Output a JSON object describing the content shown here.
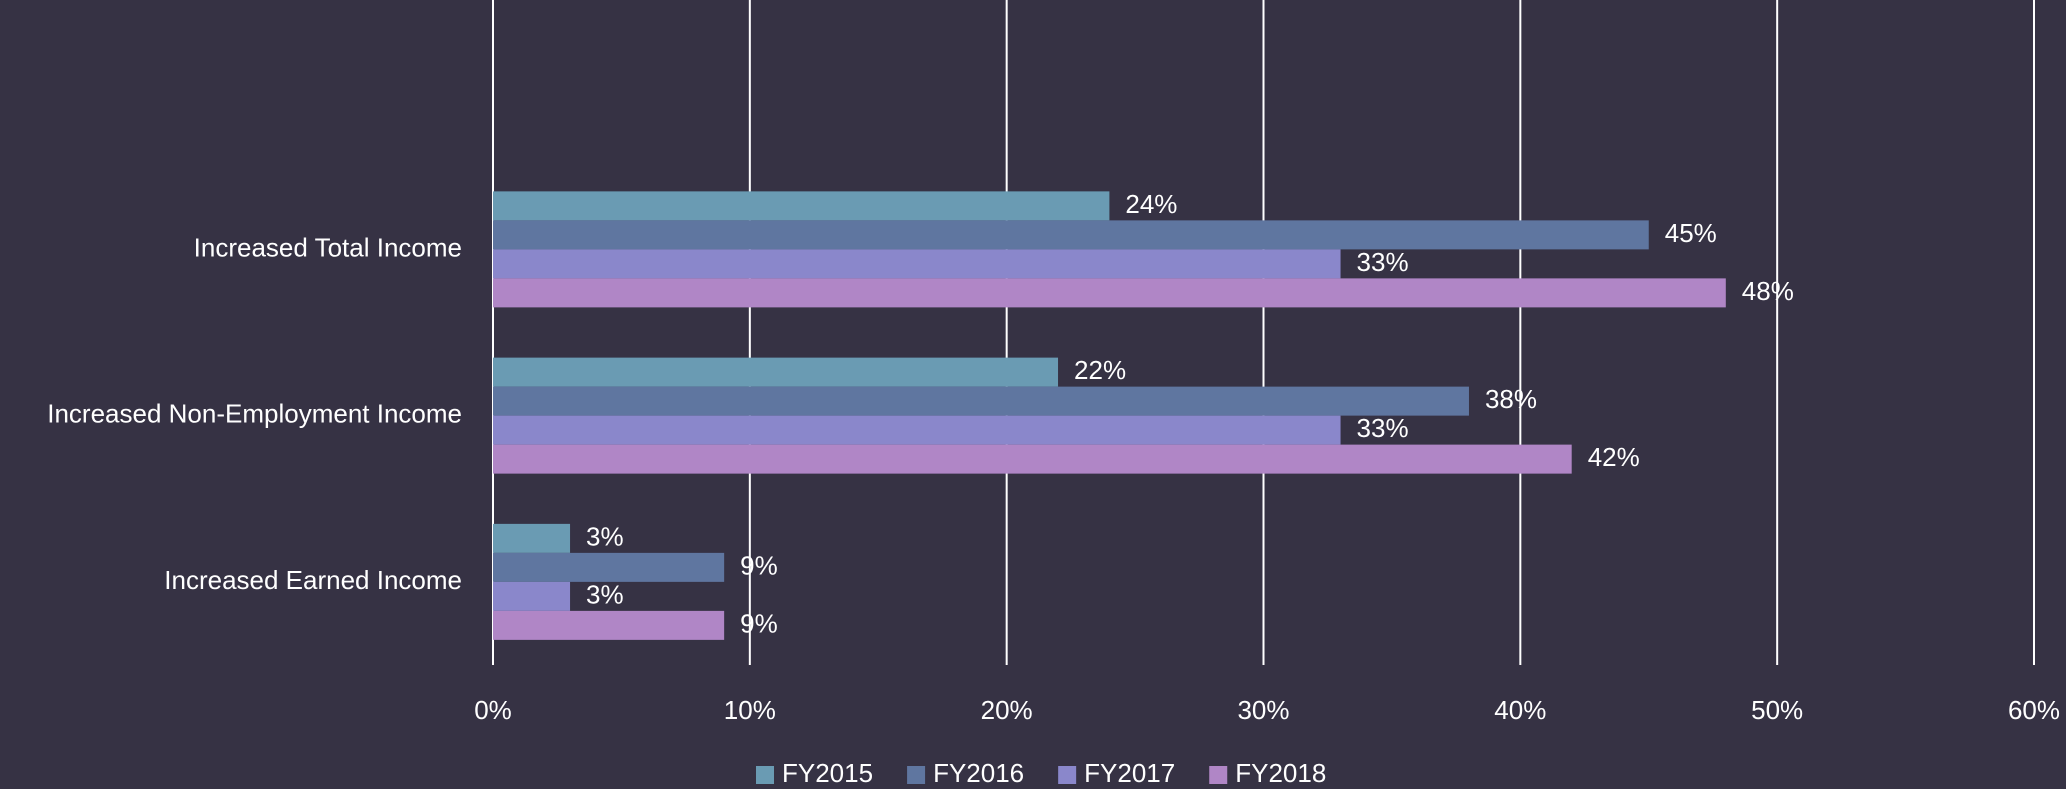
{
  "chart_data": {
    "type": "hbar",
    "categories": [
      null,
      "Increased Total Income",
      "Increased Non-Employment Income",
      "Increased Earned Income"
    ],
    "series": [
      {
        "name": "FY2015",
        "color": "#6a9bb3",
        "values": [
          null,
          24,
          22,
          3
        ],
        "value_labels": [
          null,
          "24%",
          "22%",
          "3%"
        ]
      },
      {
        "name": "FY2016",
        "color": "#5f76a0",
        "values": [
          null,
          45,
          38,
          9
        ],
        "value_labels": [
          null,
          "45%",
          "38%",
          "9%"
        ]
      },
      {
        "name": "FY2017",
        "color": "#8a87cb",
        "values": [
          null,
          33,
          33,
          3
        ],
        "value_labels": [
          null,
          "33%",
          "33%",
          "3%"
        ]
      },
      {
        "name": "FY2018",
        "color": "#b086c6",
        "values": [
          null,
          48,
          42,
          9
        ],
        "value_labels": [
          null,
          "48%",
          "42%",
          "9%"
        ]
      }
    ],
    "xlim": [
      0,
      60
    ],
    "xticks": [
      {
        "value": 0,
        "label": "0%"
      },
      {
        "value": 10,
        "label": "10%"
      },
      {
        "value": 20,
        "label": "20%"
      },
      {
        "value": 30,
        "label": "30%"
      },
      {
        "value": 40,
        "label": "40%"
      },
      {
        "value": 50,
        "label": "50%"
      },
      {
        "value": 60,
        "label": "60%"
      }
    ],
    "grid": true,
    "legend": "bottom"
  }
}
